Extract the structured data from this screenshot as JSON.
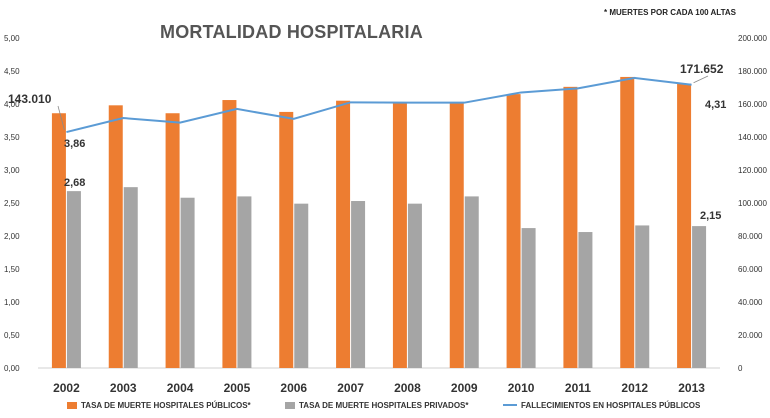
{
  "chart_data": {
    "type": "bar+line",
    "title": "MORTALIDAD HOSPITALARIA",
    "note": "* MUERTES POR CADA 100 ALTAS",
    "categories": [
      "2002",
      "2003",
      "2004",
      "2005",
      "2006",
      "2007",
      "2008",
      "2009",
      "2010",
      "2011",
      "2012",
      "2013"
    ],
    "series": [
      {
        "name": "TASA DE MUERTE HOSPITALES PÚBLICOS*",
        "type": "bar",
        "axis": "left",
        "color": "#ED7D31",
        "values": [
          3.86,
          3.98,
          3.86,
          4.06,
          3.88,
          4.05,
          4.02,
          4.03,
          4.15,
          4.26,
          4.41,
          4.31
        ]
      },
      {
        "name": "TASA DE MUERTE HOSPITALES PRIVADOS*",
        "type": "bar",
        "axis": "left",
        "color": "#A5A5A5",
        "values": [
          2.68,
          2.74,
          2.58,
          2.6,
          2.49,
          2.53,
          2.49,
          2.6,
          2.12,
          2.06,
          2.16,
          2.15
        ]
      },
      {
        "name": "FALLECIMIENTOS EN HOSPITALES PÚBLICOS",
        "type": "line",
        "axis": "right",
        "color": "#5B9BD5",
        "values": [
          143010,
          151500,
          148700,
          157000,
          151000,
          161000,
          160800,
          160800,
          167000,
          169500,
          175800,
          171652
        ]
      }
    ],
    "ylim_left": [
      0,
      5
    ],
    "yticks_left": [
      "0,00",
      "0,50",
      "1,00",
      "1,50",
      "2,00",
      "2,50",
      "3,00",
      "3,50",
      "4,00",
      "4,50",
      "5,00"
    ],
    "ylim_right": [
      0,
      200000
    ],
    "yticks_right": [
      "0",
      "20.000",
      "40.000",
      "60.000",
      "80.000",
      "100.000",
      "120.000",
      "140.000",
      "160.000",
      "180.000",
      "200.000"
    ],
    "annotations": [
      {
        "series": 2,
        "index": 0,
        "text": "143.010"
      },
      {
        "series": 0,
        "index": 0,
        "text": "3,86"
      },
      {
        "series": 1,
        "index": 0,
        "text": "2,68"
      },
      {
        "series": 2,
        "index": 11,
        "text": "171.652"
      },
      {
        "series": 0,
        "index": 11,
        "text": "4,31"
      },
      {
        "series": 1,
        "index": 11,
        "text": "2,15"
      }
    ],
    "legend": "bottom"
  }
}
